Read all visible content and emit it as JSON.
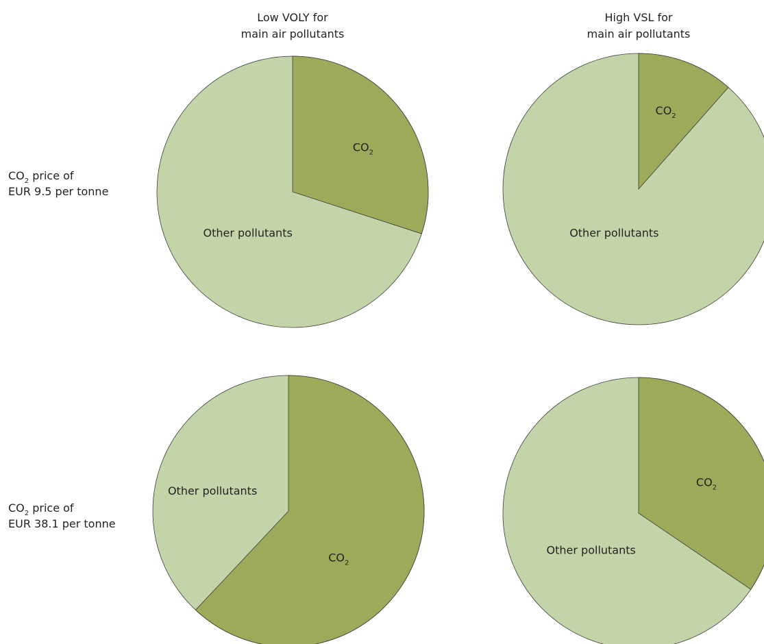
{
  "chart_data": [
    {
      "type": "pie",
      "column_label": [
        "Low VOLY for",
        "main air pollutants"
      ],
      "row_label": [
        "CO",
        "2",
        " price of",
        "EUR 9.5 per tonne"
      ],
      "slices": [
        {
          "label": "CO",
          "label_sub": "2",
          "value": 0.3
        },
        {
          "label": "Other pollutants",
          "label_sub": "",
          "value": 0.7
        }
      ],
      "colors": {
        "co2": "#9caa59",
        "other": "#c3d5a8"
      }
    },
    {
      "type": "pie",
      "column_label": [
        "High VSL for",
        "main air pollutants"
      ],
      "row_label": [
        "CO",
        "2",
        " price of",
        "EUR 9.5 per tonne"
      ],
      "slices": [
        {
          "label": "CO",
          "label_sub": "2",
          "value": 0.115
        },
        {
          "label": "Other pollutants",
          "label_sub": "",
          "value": 0.885
        }
      ],
      "colors": {
        "co2": "#9caa59",
        "other": "#c3d5a8"
      }
    },
    {
      "type": "pie",
      "column_label": [
        "Low VOLY for",
        "main air pollutants"
      ],
      "row_label": [
        "CO",
        "2",
        " price of",
        "EUR 38.1 per tonne"
      ],
      "slices": [
        {
          "label": "CO",
          "label_sub": "2",
          "value": 0.62
        },
        {
          "label": "Other pollutants",
          "label_sub": "",
          "value": 0.38
        }
      ],
      "colors": {
        "co2": "#9caa59",
        "other": "#c3d5a8"
      }
    },
    {
      "type": "pie",
      "column_label": [
        "High VSL for",
        "main air pollutants"
      ],
      "row_label": [
        "CO",
        "2",
        " price of",
        "EUR 38.1 per tonne"
      ],
      "slices": [
        {
          "label": "CO",
          "label_sub": "2",
          "value": 0.345
        },
        {
          "label": "Other pollutants",
          "label_sub": "",
          "value": 0.655
        }
      ],
      "colors": {
        "co2": "#9caa59",
        "other": "#c3d5a8"
      }
    }
  ],
  "headers": {
    "col1_line1": "Low VOLY for",
    "col1_line2": "main air pollutants",
    "col2_line1": "High VSL for",
    "col2_line2": "main air pollutants"
  },
  "row_labels": {
    "row1": {
      "co": "CO",
      "sub": "2",
      "rest": " price of",
      "line2": "EUR 9.5 per tonne"
    },
    "row2": {
      "co": "CO",
      "sub": "2",
      "rest": " price of",
      "line2": "EUR 38.1 per tonne"
    }
  }
}
